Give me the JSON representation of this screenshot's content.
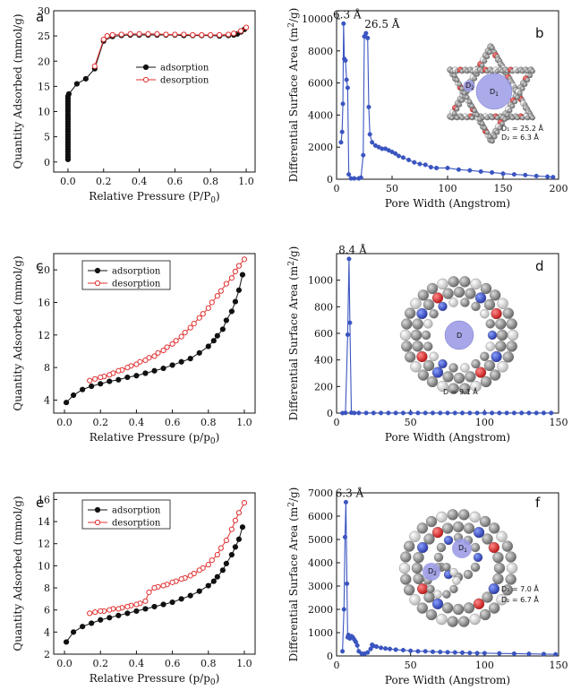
{
  "chart_data": [
    {
      "id": "a",
      "type": "scatter",
      "panel_letter": "a",
      "xlabel": "Relative Pressure (P/P",
      "xlabel_sub": "0",
      "xlabel_tail": ")",
      "ylabel": "Quantity Adsorbed (mmol/g)",
      "xlim": [
        -0.08,
        1.05
      ],
      "ylim": [
        -2,
        30
      ],
      "xticks": [
        "0.0",
        "0.2",
        "0.4",
        "0.6",
        "0.8",
        "1.0"
      ],
      "xtick_vals": [
        0,
        0.2,
        0.4,
        0.6,
        0.8,
        1.0
      ],
      "yticks": [
        "0",
        "5",
        "10",
        "15",
        "20",
        "25",
        "30"
      ],
      "ytick_vals": [
        0,
        5,
        10,
        15,
        20,
        25,
        30
      ],
      "legend": {
        "position": "center-right",
        "entries": [
          "adsorption",
          "desorption"
        ]
      },
      "series": [
        {
          "name": "adsorption",
          "color": "#111111",
          "marker": "filled-circle",
          "x": [
            0.0,
            0.0,
            0.0,
            0.0,
            0.0,
            0.0,
            0.0,
            0.0,
            0.0,
            0.0,
            0.0,
            0.0,
            0.0,
            0.0,
            0.0,
            0.0,
            0.0,
            0.0,
            0.0,
            0.0,
            0.0,
            0.0,
            0.0,
            0.0,
            0.0,
            0.0,
            0.005,
            0.05,
            0.1,
            0.15,
            0.2,
            0.25,
            0.3,
            0.35,
            0.4,
            0.45,
            0.5,
            0.55,
            0.6,
            0.65,
            0.7,
            0.75,
            0.8,
            0.85,
            0.9,
            0.93,
            0.95,
            0.97,
            0.99
          ],
          "y": [
            0.5,
            1,
            1.5,
            2,
            2.5,
            3,
            3.5,
            4,
            4.5,
            5,
            5.5,
            6,
            6.5,
            7,
            7.5,
            8,
            8.5,
            9,
            9.5,
            10,
            10.5,
            11,
            11.5,
            12,
            12.5,
            13,
            13.5,
            15.5,
            16.5,
            18.5,
            24,
            24.9,
            25.1,
            25.2,
            25.2,
            25.2,
            25.2,
            25.2,
            25.2,
            25.1,
            25.1,
            25.1,
            25.1,
            25.0,
            25.1,
            25.2,
            25.4,
            25.8,
            26.3
          ]
        },
        {
          "name": "desorption",
          "color": "#e03030",
          "marker": "open-circle",
          "x": [
            1.0,
            0.97,
            0.93,
            0.9,
            0.85,
            0.8,
            0.75,
            0.7,
            0.65,
            0.6,
            0.55,
            0.5,
            0.45,
            0.4,
            0.35,
            0.3,
            0.25,
            0.22,
            0.2,
            0.15
          ],
          "y": [
            26.7,
            26.0,
            25.5,
            25.3,
            25.2,
            25.2,
            25.2,
            25.2,
            25.3,
            25.3,
            25.3,
            25.4,
            25.4,
            25.4,
            25.4,
            25.3,
            25.2,
            25.0,
            24.3,
            19.0
          ]
        }
      ]
    },
    {
      "id": "b",
      "type": "line",
      "panel_letter": "b",
      "xlabel": "Pore Width (Angstrom)",
      "ylabel": "Differential Surface Area (m",
      "ylabel_sup": "2",
      "ylabel_tail": "/g)",
      "xlim": [
        0,
        200
      ],
      "ylim": [
        0,
        10500
      ],
      "xticks": [
        "0",
        "50",
        "100",
        "150",
        "200"
      ],
      "xtick_vals": [
        0,
        50,
        100,
        150,
        200
      ],
      "yticks": [
        "0",
        "2000",
        "4000",
        "6000",
        "8000",
        "10000"
      ],
      "ytick_vals": [
        0,
        2000,
        4000,
        6000,
        8000,
        10000
      ],
      "annotations": [
        {
          "text": "6.3 Å",
          "x": 6.3,
          "y": 9700
        },
        {
          "text": "26.5 Å",
          "x": 26.5,
          "y": 9100
        }
      ],
      "inset": {
        "d1_label": "D",
        "d1_sub": "1",
        "d2_label": "D",
        "d2_sub": "2",
        "lines": [
          "D₁ = 25.2 Å",
          "D₂ = 6.3 Å"
        ]
      },
      "series": [
        {
          "name": "",
          "color": "#3a55c0",
          "x": [
            4,
            5,
            5.7,
            6.3,
            7,
            8,
            9,
            10,
            11,
            13,
            16,
            20,
            22,
            24,
            25,
            26.5,
            28,
            29,
            30,
            32,
            35,
            38,
            41,
            44,
            47,
            50,
            53,
            56,
            60,
            65,
            70,
            75,
            80,
            85,
            90,
            100,
            110,
            120,
            130,
            140,
            150,
            160,
            170,
            180,
            190,
            195
          ],
          "y": [
            2300,
            2950,
            4700,
            9700,
            7500,
            7400,
            6200,
            5700,
            300,
            50,
            50,
            50,
            100,
            1500,
            8900,
            9100,
            8800,
            4500,
            2800,
            2300,
            2100,
            2000,
            1900,
            1900,
            1800,
            1700,
            1600,
            1450,
            1350,
            1200,
            1050,
            950,
            900,
            750,
            700,
            700,
            600,
            550,
            480,
            420,
            350,
            300,
            260,
            200,
            160,
            130
          ]
        }
      ]
    },
    {
      "id": "c",
      "type": "scatter",
      "panel_letter": "c",
      "xlabel": "Relative Pressure (p/p",
      "xlabel_sub": "0",
      "xlabel_tail": ")",
      "ylabel": "Quantity Adsorbed (mmol/g)",
      "xlim": [
        -0.06,
        1.06
      ],
      "ylim": [
        2.4,
        22
      ],
      "xticks": [
        "0.0",
        "0.2",
        "0.4",
        "0.6",
        "0.8",
        "1.0"
      ],
      "xtick_vals": [
        0,
        0.2,
        0.4,
        0.6,
        0.8,
        1.0
      ],
      "yticks": [
        "4",
        "8",
        "12",
        "16",
        "20"
      ],
      "ytick_vals": [
        4,
        8,
        12,
        16,
        20
      ],
      "legend": {
        "position": "top-left",
        "entries": [
          "adsorption",
          "desorption"
        ]
      },
      "series": [
        {
          "name": "adsorption",
          "color": "#111111",
          "marker": "filled-circle",
          "x": [
            0.01,
            0.05,
            0.1,
            0.15,
            0.2,
            0.25,
            0.3,
            0.35,
            0.4,
            0.45,
            0.5,
            0.55,
            0.6,
            0.65,
            0.7,
            0.75,
            0.8,
            0.83,
            0.85,
            0.88,
            0.9,
            0.93,
            0.95,
            0.97,
            0.99
          ],
          "y": [
            3.7,
            4.6,
            5.3,
            5.7,
            6.0,
            6.3,
            6.5,
            6.8,
            7.0,
            7.3,
            7.6,
            7.9,
            8.3,
            8.7,
            9.1,
            9.8,
            10.6,
            11.3,
            11.9,
            12.7,
            13.8,
            14.9,
            16.1,
            17.5,
            19.4
          ]
        },
        {
          "name": "desorption",
          "color": "#e03030",
          "marker": "open-circle",
          "x": [
            1.0,
            0.97,
            0.95,
            0.93,
            0.9,
            0.87,
            0.85,
            0.82,
            0.8,
            0.77,
            0.75,
            0.72,
            0.7,
            0.67,
            0.65,
            0.62,
            0.6,
            0.57,
            0.55,
            0.52,
            0.5,
            0.47,
            0.45,
            0.42,
            0.4,
            0.37,
            0.35,
            0.32,
            0.3,
            0.27,
            0.25,
            0.22,
            0.2,
            0.17,
            0.14
          ],
          "y": [
            21.3,
            20.5,
            19.8,
            19.0,
            18.3,
            17.4,
            16.8,
            16.0,
            15.3,
            14.6,
            14.1,
            13.4,
            12.9,
            12.3,
            11.8,
            11.3,
            10.9,
            10.5,
            10.1,
            9.8,
            9.4,
            9.2,
            8.9,
            8.7,
            8.4,
            8.2,
            8.0,
            7.7,
            7.6,
            7.3,
            7.1,
            6.9,
            6.8,
            6.6,
            6.4
          ]
        }
      ]
    },
    {
      "id": "d",
      "type": "line",
      "panel_letter": "d",
      "xlabel": "Pore Width (Angstrom)",
      "ylabel": "Differential Surface Area (m",
      "ylabel_sup": "2",
      "ylabel_tail": "/g)",
      "xlim": [
        0,
        150
      ],
      "ylim": [
        0,
        1200
      ],
      "xticks": [
        "0",
        "50",
        "100",
        "150"
      ],
      "xtick_vals": [
        0,
        50,
        100,
        150
      ],
      "yticks": [
        "0",
        "200",
        "400",
        "600",
        "800",
        "1000"
      ],
      "ytick_vals": [
        0,
        200,
        400,
        600,
        800,
        1000
      ],
      "annotations": [
        {
          "text": "8.4 Å",
          "x": 8.4,
          "y": 1160
        }
      ],
      "inset": {
        "d_label": "D",
        "lines": [
          "D = 9.1 Å"
        ]
      },
      "series": [
        {
          "name": "",
          "color": "#3a55c0",
          "x": [
            4,
            6,
            7.5,
            8.4,
            9,
            10,
            12,
            15,
            20,
            25,
            30,
            35,
            40,
            45,
            50,
            55,
            60,
            65,
            70,
            75,
            80,
            85,
            90,
            95,
            100,
            105,
            110,
            115,
            120,
            125,
            130,
            135,
            140,
            145
          ],
          "y": [
            0,
            2,
            590,
            1160,
            680,
            3,
            1,
            1,
            1,
            1,
            1,
            1,
            1,
            1,
            1,
            1,
            1,
            1,
            1,
            1,
            1,
            1,
            1,
            1,
            1,
            1,
            1,
            1,
            1,
            1,
            1,
            1,
            1,
            1
          ]
        }
      ]
    },
    {
      "id": "e",
      "type": "scatter",
      "panel_letter": "e",
      "xlabel": "Relative Pressure (p/p",
      "xlabel_sub": "0",
      "xlabel_tail": ")",
      "ylabel": "Quantity Adsorbed (mmol/g)",
      "xlim": [
        -0.06,
        1.06
      ],
      "ylim": [
        2,
        16.6
      ],
      "xticks": [
        "0.0",
        "0.2",
        "0.4",
        "0.6",
        "0.8",
        "1.0"
      ],
      "xtick_vals": [
        0,
        0.2,
        0.4,
        0.6,
        0.8,
        1.0
      ],
      "yticks": [
        "2",
        "4",
        "6",
        "8",
        "10",
        "12",
        "14",
        "16"
      ],
      "ytick_vals": [
        2,
        4,
        6,
        8,
        10,
        12,
        14,
        16
      ],
      "legend": {
        "position": "top-left",
        "entries": [
          "adsorption",
          "desorption"
        ]
      },
      "series": [
        {
          "name": "adsorption",
          "color": "#111111",
          "marker": "filled-circle",
          "x": [
            0.01,
            0.05,
            0.1,
            0.15,
            0.2,
            0.25,
            0.3,
            0.35,
            0.4,
            0.45,
            0.5,
            0.55,
            0.6,
            0.65,
            0.7,
            0.75,
            0.8,
            0.83,
            0.85,
            0.88,
            0.9,
            0.93,
            0.95,
            0.97,
            0.99
          ],
          "y": [
            3.1,
            4.0,
            4.5,
            4.8,
            5.1,
            5.3,
            5.5,
            5.7,
            5.9,
            6.1,
            6.3,
            6.5,
            6.7,
            7.0,
            7.3,
            7.7,
            8.2,
            8.6,
            9.0,
            9.6,
            10.2,
            11.0,
            11.7,
            12.4,
            13.5
          ]
        },
        {
          "name": "desorption",
          "color": "#e03030",
          "marker": "open-circle",
          "x": [
            1.0,
            0.97,
            0.95,
            0.93,
            0.9,
            0.87,
            0.85,
            0.82,
            0.8,
            0.77,
            0.75,
            0.72,
            0.7,
            0.67,
            0.65,
            0.62,
            0.6,
            0.57,
            0.55,
            0.52,
            0.5,
            0.47,
            0.45,
            0.42,
            0.4,
            0.37,
            0.35,
            0.32,
            0.3,
            0.27,
            0.25,
            0.22,
            0.2,
            0.17,
            0.14
          ],
          "y": [
            15.7,
            14.8,
            14.1,
            13.3,
            12.3,
            11.6,
            11.0,
            10.5,
            10.1,
            9.8,
            9.6,
            9.3,
            9.1,
            8.9,
            8.8,
            8.6,
            8.5,
            8.3,
            8.2,
            8.1,
            8.0,
            7.6,
            6.8,
            6.6,
            6.5,
            6.4,
            6.3,
            6.2,
            6.1,
            6.1,
            6.0,
            5.9,
            5.9,
            5.8,
            5.7
          ]
        }
      ]
    },
    {
      "id": "f",
      "type": "line",
      "panel_letter": "f",
      "xlabel": "Pore Width (Angstrom)",
      "ylabel": "Differential Surface Area (m",
      "ylabel_sup": "2",
      "ylabel_tail": "/g)",
      "xlim": [
        0,
        150
      ],
      "ylim": [
        0,
        7000
      ],
      "xticks": [
        "0",
        "50",
        "100",
        "150"
      ],
      "xtick_vals": [
        0,
        50,
        100,
        150
      ],
      "yticks": [
        "0",
        "1000",
        "2000",
        "3000",
        "4000",
        "5000",
        "6000",
        "7000"
      ],
      "ytick_vals": [
        0,
        1000,
        2000,
        3000,
        4000,
        5000,
        6000,
        7000
      ],
      "annotations": [
        {
          "text": "6.3 Å",
          "x": 6.3,
          "y": 6600
        }
      ],
      "inset": {
        "d1_label": "D",
        "d1_sub": "1",
        "d2_label": "D",
        "d2_sub": "2",
        "lines": [
          "D₁ = 7.0 Å",
          "D₂ = 6.7 Å"
        ]
      },
      "series": [
        {
          "name": "",
          "color": "#3a55c0",
          "x": [
            4,
            5,
            5.7,
            6.3,
            7,
            7.5,
            8,
            9,
            10,
            11,
            12,
            13,
            14,
            15,
            17,
            19,
            21,
            23,
            24,
            25,
            27,
            30,
            33,
            36,
            40,
            45,
            50,
            55,
            60,
            65,
            70,
            75,
            80,
            85,
            90,
            95,
            100,
            110,
            120,
            130,
            140,
            148
          ],
          "y": [
            200,
            2000,
            5100,
            6600,
            3100,
            800,
            900,
            750,
            850,
            800,
            700,
            600,
            450,
            200,
            100,
            100,
            150,
            300,
            480,
            430,
            400,
            350,
            320,
            300,
            270,
            250,
            220,
            200,
            200,
            180,
            170,
            160,
            150,
            140,
            130,
            120,
            120,
            110,
            100,
            90,
            80,
            70
          ]
        }
      ]
    }
  ]
}
